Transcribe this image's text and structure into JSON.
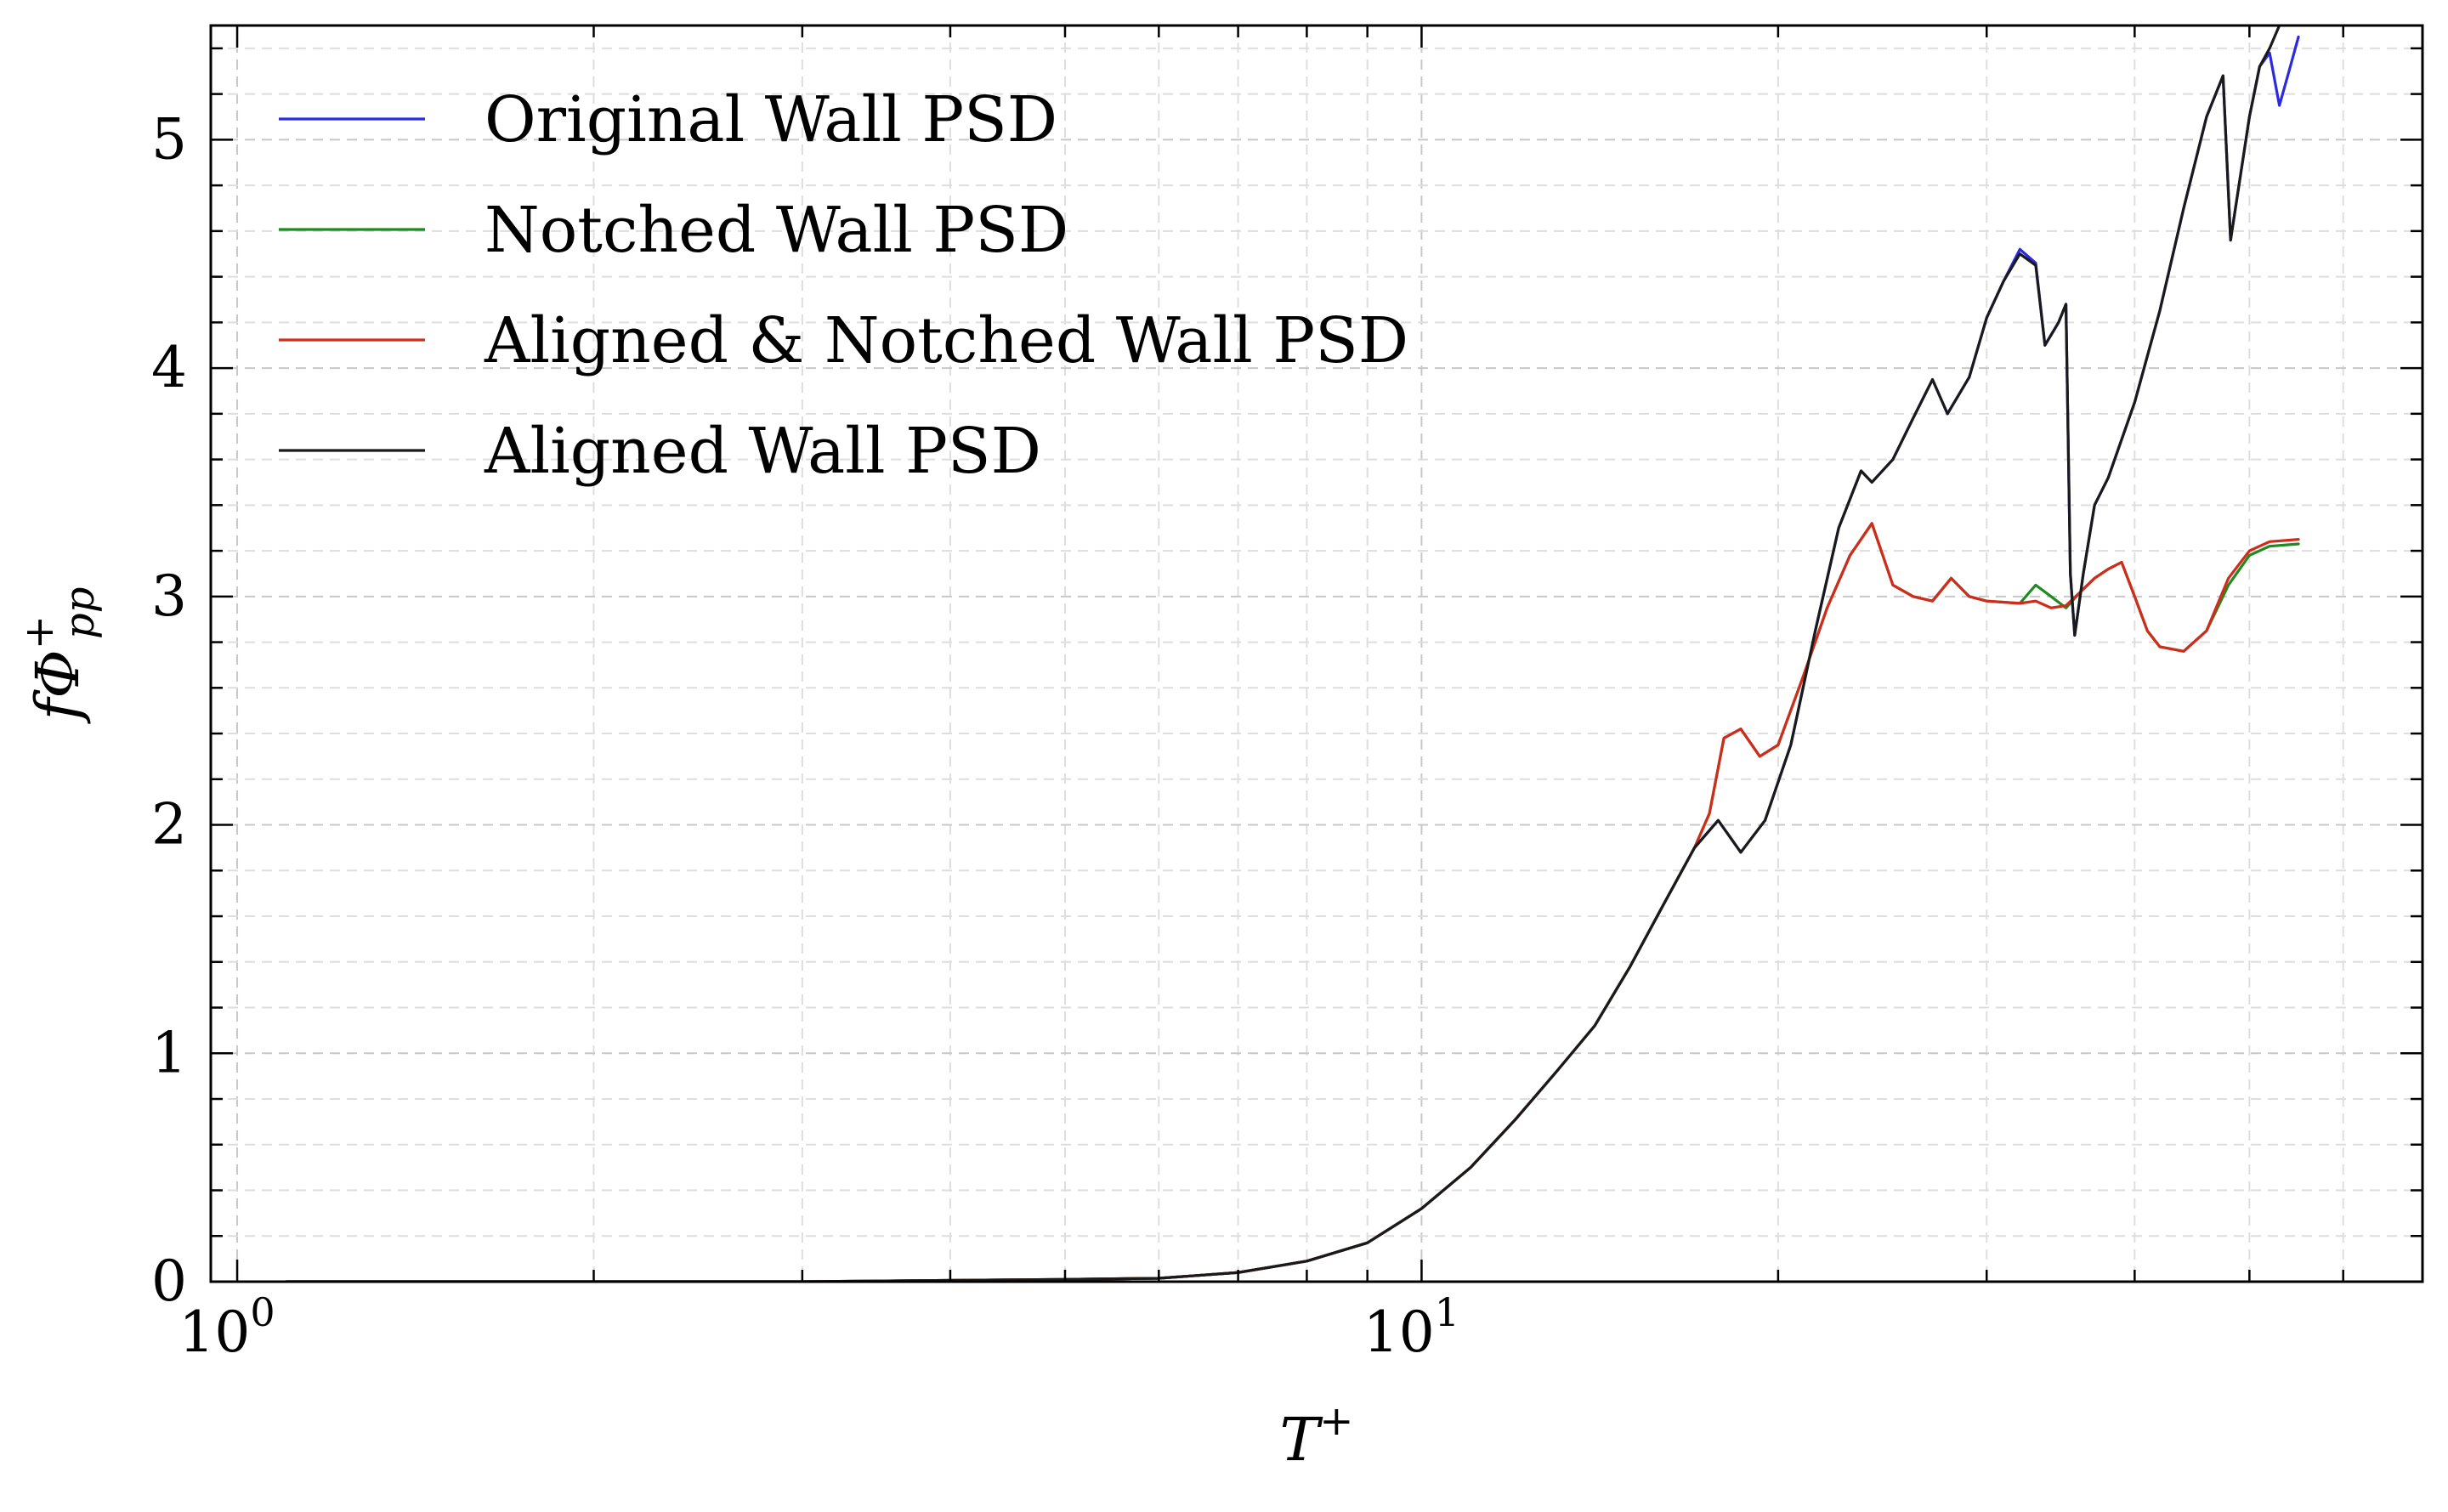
{
  "chart_data": {
    "type": "line",
    "title": "",
    "xlabel": "T",
    "xlabel_sup": "+",
    "ylabel": "fΦ",
    "ylabel_sub": "pp",
    "ylabel_sup": "+",
    "xscale": "log",
    "xlim": [
      0.95,
      70
    ],
    "ylim": [
      0,
      5.5
    ],
    "grid": true,
    "legend_position": "top-left",
    "x_ticks": [
      {
        "base": "10",
        "exp": "0",
        "value": 1
      },
      {
        "base": "10",
        "exp": "1",
        "value": 10
      }
    ],
    "y_ticks": [
      0,
      1,
      2,
      3,
      4,
      5
    ],
    "series": [
      {
        "name": "Original Wall PSD",
        "color": "#2a2ae0",
        "points": [
          [
            1.1,
            0
          ],
          [
            3,
            0
          ],
          [
            5,
            0.01
          ],
          [
            6,
            0.015
          ],
          [
            7,
            0.04
          ],
          [
            8,
            0.09
          ],
          [
            9,
            0.17
          ],
          [
            10,
            0.32
          ],
          [
            11,
            0.5
          ],
          [
            12,
            0.71
          ],
          [
            13,
            0.92
          ],
          [
            14,
            1.12
          ],
          [
            15,
            1.38
          ],
          [
            16,
            1.65
          ],
          [
            17,
            1.9
          ],
          [
            17.8,
            2.02
          ],
          [
            18.6,
            1.88
          ],
          [
            19.5,
            2.02
          ],
          [
            20.5,
            2.35
          ],
          [
            21.5,
            2.85
          ],
          [
            22.5,
            3.3
          ],
          [
            23.5,
            3.55
          ],
          [
            24,
            3.5
          ],
          [
            25,
            3.6
          ],
          [
            26,
            3.78
          ],
          [
            27,
            3.95
          ],
          [
            27.8,
            3.8
          ],
          [
            29,
            3.96
          ],
          [
            30,
            4.22
          ],
          [
            31,
            4.38
          ],
          [
            32,
            4.52
          ],
          [
            33,
            4.46
          ],
          [
            33.6,
            4.1
          ],
          [
            34.5,
            4.2
          ],
          [
            35,
            4.28
          ],
          [
            35.3,
            3.1
          ],
          [
            35.6,
            2.83
          ],
          [
            36.2,
            3.1
          ],
          [
            37,
            3.4
          ],
          [
            38,
            3.52
          ],
          [
            40,
            3.85
          ],
          [
            42,
            4.25
          ],
          [
            44,
            4.7
          ],
          [
            46,
            5.1
          ],
          [
            47.5,
            5.28
          ],
          [
            48.2,
            4.56
          ],
          [
            50,
            5.1
          ],
          [
            51,
            5.32
          ],
          [
            52,
            5.38
          ],
          [
            53,
            5.15
          ],
          [
            54,
            5.3
          ],
          [
            55,
            5.45
          ]
        ]
      },
      {
        "name": "Notched Wall PSD",
        "color": "#1f8a1f",
        "points": [
          [
            1.1,
            0
          ],
          [
            3,
            0
          ],
          [
            5,
            0.01
          ],
          [
            6,
            0.015
          ],
          [
            7,
            0.04
          ],
          [
            8,
            0.09
          ],
          [
            9,
            0.17
          ],
          [
            10,
            0.32
          ],
          [
            11,
            0.5
          ],
          [
            12,
            0.71
          ],
          [
            13,
            0.92
          ],
          [
            14,
            1.12
          ],
          [
            15,
            1.38
          ],
          [
            16,
            1.65
          ],
          [
            17,
            1.9
          ],
          [
            17.5,
            2.05
          ],
          [
            18,
            2.38
          ],
          [
            18.6,
            2.42
          ],
          [
            19.3,
            2.3
          ],
          [
            20,
            2.35
          ],
          [
            21,
            2.65
          ],
          [
            22,
            2.95
          ],
          [
            23,
            3.18
          ],
          [
            24,
            3.32
          ],
          [
            25,
            3.05
          ],
          [
            26,
            3.0
          ],
          [
            27,
            2.98
          ],
          [
            28,
            3.08
          ],
          [
            29,
            3.0
          ],
          [
            30,
            2.98
          ],
          [
            32,
            2.97
          ],
          [
            33,
            3.05
          ],
          [
            34,
            3.0
          ],
          [
            35,
            2.95
          ],
          [
            36,
            3.02
          ],
          [
            37,
            3.08
          ],
          [
            38,
            3.12
          ],
          [
            39,
            3.15
          ],
          [
            40,
            3.0
          ],
          [
            41,
            2.85
          ],
          [
            42,
            2.78
          ],
          [
            44,
            2.76
          ],
          [
            46,
            2.85
          ],
          [
            48,
            3.05
          ],
          [
            50,
            3.18
          ],
          [
            52,
            3.22
          ],
          [
            55,
            3.23
          ]
        ]
      },
      {
        "name": "Aligned & Notched Wall PSD",
        "color": "#d02c1c",
        "points": [
          [
            1.1,
            0
          ],
          [
            3,
            0
          ],
          [
            5,
            0.01
          ],
          [
            6,
            0.015
          ],
          [
            7,
            0.04
          ],
          [
            8,
            0.09
          ],
          [
            9,
            0.17
          ],
          [
            10,
            0.32
          ],
          [
            11,
            0.5
          ],
          [
            12,
            0.71
          ],
          [
            13,
            0.92
          ],
          [
            14,
            1.12
          ],
          [
            15,
            1.38
          ],
          [
            16,
            1.65
          ],
          [
            17,
            1.9
          ],
          [
            17.5,
            2.05
          ],
          [
            18,
            2.38
          ],
          [
            18.6,
            2.42
          ],
          [
            19.3,
            2.3
          ],
          [
            20,
            2.35
          ],
          [
            21,
            2.65
          ],
          [
            22,
            2.95
          ],
          [
            23,
            3.18
          ],
          [
            24,
            3.32
          ],
          [
            25,
            3.05
          ],
          [
            26,
            3.0
          ],
          [
            27,
            2.98
          ],
          [
            28,
            3.08
          ],
          [
            29,
            3.0
          ],
          [
            30,
            2.98
          ],
          [
            32,
            2.97
          ],
          [
            33,
            2.98
          ],
          [
            34,
            2.95
          ],
          [
            35,
            2.96
          ],
          [
            36,
            3.02
          ],
          [
            37,
            3.08
          ],
          [
            38,
            3.12
          ],
          [
            39,
            3.15
          ],
          [
            40,
            3.0
          ],
          [
            41,
            2.85
          ],
          [
            42,
            2.78
          ],
          [
            44,
            2.76
          ],
          [
            46,
            2.85
          ],
          [
            48,
            3.08
          ],
          [
            50,
            3.2
          ],
          [
            52,
            3.24
          ],
          [
            55,
            3.25
          ]
        ]
      },
      {
        "name": "Aligned Wall PSD",
        "color": "#1a1a1a",
        "points": [
          [
            1.1,
            0
          ],
          [
            3,
            0
          ],
          [
            5,
            0.01
          ],
          [
            6,
            0.015
          ],
          [
            7,
            0.04
          ],
          [
            8,
            0.09
          ],
          [
            9,
            0.17
          ],
          [
            10,
            0.32
          ],
          [
            11,
            0.5
          ],
          [
            12,
            0.71
          ],
          [
            13,
            0.92
          ],
          [
            14,
            1.12
          ],
          [
            15,
            1.38
          ],
          [
            16,
            1.65
          ],
          [
            17,
            1.9
          ],
          [
            17.8,
            2.02
          ],
          [
            18.6,
            1.88
          ],
          [
            19.5,
            2.02
          ],
          [
            20.5,
            2.35
          ],
          [
            21.5,
            2.85
          ],
          [
            22.5,
            3.3
          ],
          [
            23.5,
            3.55
          ],
          [
            24,
            3.5
          ],
          [
            25,
            3.6
          ],
          [
            26,
            3.78
          ],
          [
            27,
            3.95
          ],
          [
            27.8,
            3.8
          ],
          [
            29,
            3.96
          ],
          [
            30,
            4.22
          ],
          [
            31,
            4.38
          ],
          [
            32,
            4.5
          ],
          [
            33,
            4.45
          ],
          [
            33.6,
            4.1
          ],
          [
            34.5,
            4.2
          ],
          [
            35,
            4.28
          ],
          [
            35.3,
            3.1
          ],
          [
            35.6,
            2.83
          ],
          [
            36.2,
            3.1
          ],
          [
            37,
            3.4
          ],
          [
            38,
            3.52
          ],
          [
            40,
            3.85
          ],
          [
            42,
            4.25
          ],
          [
            44,
            4.7
          ],
          [
            46,
            5.1
          ],
          [
            47.5,
            5.28
          ],
          [
            48.2,
            4.56
          ],
          [
            50,
            5.1
          ],
          [
            51,
            5.32
          ],
          [
            52,
            5.4
          ],
          [
            53,
            5.5
          ],
          [
            54,
            5.55
          ]
        ]
      }
    ]
  }
}
